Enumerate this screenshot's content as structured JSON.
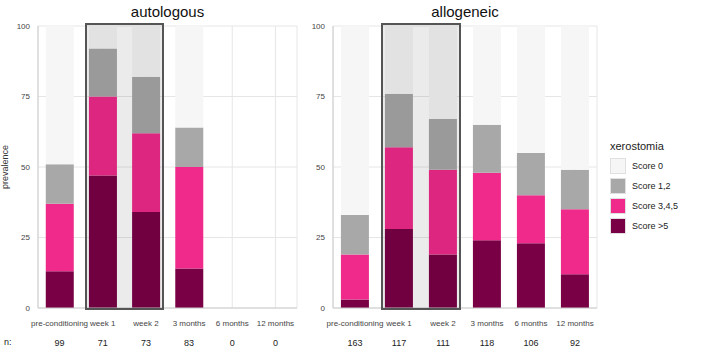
{
  "chart_data": [
    {
      "type": "bar",
      "title": "autologous",
      "y_label": "prevalence",
      "stacked": true,
      "grid": true,
      "categories": [
        "pre-conditioning",
        "week 1",
        "week 2",
        "3 months",
        "6 months",
        "12 months"
      ],
      "n_label": "n:",
      "n": [
        99,
        71,
        73,
        83,
        0,
        0
      ],
      "ylim": [
        0,
        100
      ],
      "yticks": [
        0,
        25,
        50,
        75,
        100
      ],
      "series": [
        {
          "name": "Score >5",
          "color": "#7a0046",
          "values": [
            13,
            47,
            34,
            14,
            null,
            null
          ]
        },
        {
          "name": "Score 3,4,5",
          "color": "#ef2a8a",
          "values": [
            24,
            28,
            28,
            36,
            null,
            null
          ]
        },
        {
          "name": "Score 1,2",
          "color": "#a8a8a8",
          "values": [
            14,
            17,
            20,
            14,
            null,
            null
          ]
        },
        {
          "name": "Score 0",
          "color": "#f6f6f6",
          "values": [
            49,
            8,
            18,
            36,
            null,
            null
          ]
        }
      ]
    },
    {
      "type": "bar",
      "title": "allogeneic",
      "stacked": true,
      "grid": true,
      "legend": "right",
      "legend_title": "xerostomia",
      "categories": [
        "pre-conditioning",
        "week 1",
        "week 2",
        "3 months",
        "6 months",
        "12 months"
      ],
      "n": [
        163,
        117,
        111,
        118,
        106,
        92
      ],
      "ylim": [
        0,
        100
      ],
      "yticks": [
        0,
        25,
        50,
        75,
        100
      ],
      "series": [
        {
          "name": "Score >5",
          "color": "#7a0046",
          "values": [
            3,
            28,
            19,
            24,
            23,
            12
          ]
        },
        {
          "name": "Score 3,4,5",
          "color": "#ef2a8a",
          "values": [
            16,
            29,
            30,
            24,
            17,
            23
          ]
        },
        {
          "name": "Score 1,2",
          "color": "#a8a8a8",
          "values": [
            14,
            19,
            18,
            17,
            15,
            14
          ]
        },
        {
          "name": "Score 0",
          "color": "#f6f6f6",
          "values": [
            67,
            24,
            33,
            35,
            45,
            51
          ]
        }
      ]
    }
  ]
}
